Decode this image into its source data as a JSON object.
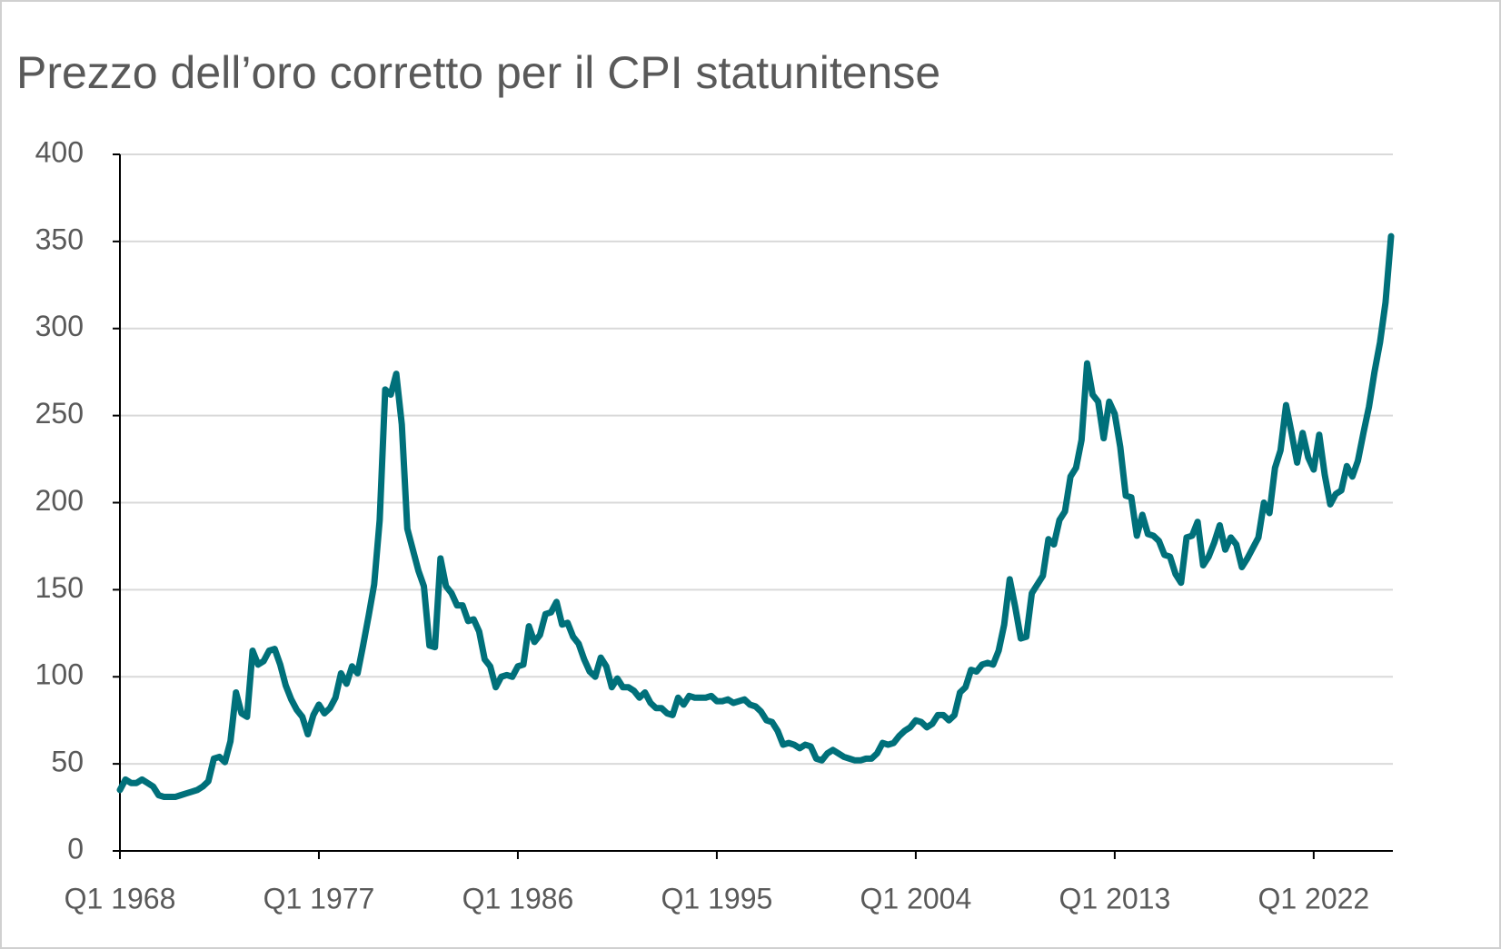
{
  "chart_data": {
    "type": "line",
    "title": "Prezzo dell’oro corretto per il CPI statunitense",
    "categories": [
      "Q1 1968",
      null,
      null,
      null,
      null,
      null,
      null,
      null,
      null,
      null,
      null,
      null,
      null,
      null,
      null,
      null,
      null,
      null,
      null,
      null,
      null,
      null,
      null,
      null,
      null,
      null,
      null,
      null,
      null,
      null,
      null,
      null,
      null,
      null,
      null,
      null,
      "Q1 1977",
      null,
      null,
      null,
      null,
      null,
      null,
      null,
      null,
      null,
      null,
      null,
      null,
      null,
      null,
      null,
      null,
      null,
      null,
      null,
      null,
      null,
      null,
      null,
      null,
      null,
      null,
      null,
      null,
      null,
      null,
      null,
      null,
      null,
      null,
      null,
      "Q1 1986",
      null,
      null,
      null,
      null,
      null,
      null,
      null,
      null,
      null,
      null,
      null,
      null,
      null,
      null,
      null,
      null,
      null,
      null,
      null,
      null,
      null,
      null,
      null,
      null,
      null,
      null,
      null,
      null,
      null,
      null,
      null,
      null,
      null,
      null,
      null,
      "Q1 1995",
      null,
      null,
      null,
      null,
      null,
      null,
      null,
      null,
      null,
      null,
      null,
      null,
      null,
      null,
      null,
      null,
      null,
      null,
      null,
      null,
      null,
      null,
      null,
      null,
      null,
      null,
      null,
      null,
      null,
      null,
      null,
      null,
      null,
      null,
      null,
      "Q1 2004",
      null,
      null,
      null,
      null,
      null,
      null,
      null,
      null,
      null,
      null,
      null,
      null,
      null,
      null,
      null,
      null,
      null,
      null,
      null,
      null,
      null,
      null,
      null,
      null,
      null,
      null,
      null,
      null,
      null,
      null,
      null,
      null,
      null,
      null,
      null,
      "Q1 2013",
      null,
      null,
      null,
      null,
      null,
      null,
      null,
      null,
      null,
      null,
      null,
      null,
      null,
      null,
      null,
      null,
      null,
      null,
      null,
      null,
      null,
      null,
      null,
      null,
      null,
      null,
      null,
      null,
      null,
      null,
      null,
      null,
      null,
      null,
      null,
      "Q1 2022",
      null,
      null,
      null,
      null,
      null,
      null,
      null,
      null,
      null,
      null,
      null,
      null,
      null,
      null
    ],
    "series": [
      {
        "color": "#00707a",
        "values": [
          35,
          41,
          39,
          39,
          41,
          39,
          37,
          32,
          31,
          31,
          31,
          32,
          33,
          34,
          35,
          37,
          40,
          53,
          54,
          51,
          63,
          91,
          79,
          77,
          115,
          107,
          109,
          115,
          116,
          107,
          95,
          87,
          81,
          77,
          67,
          78,
          84,
          79,
          82,
          88,
          102,
          96,
          106,
          102,
          118,
          135,
          153,
          190,
          265,
          262,
          274,
          245,
          185,
          173,
          161,
          152,
          118,
          117,
          168,
          152,
          148,
          141,
          141,
          132,
          133,
          126,
          110,
          106,
          94,
          100,
          101,
          100,
          106,
          107,
          129,
          120,
          124,
          136,
          137,
          143,
          130,
          131,
          123,
          119,
          110,
          103,
          100,
          111,
          106,
          94,
          99,
          94,
          94,
          92,
          88,
          91,
          85,
          82,
          82,
          79,
          78,
          88,
          84,
          89,
          88,
          88,
          88,
          89,
          86,
          86,
          87,
          85,
          86,
          87,
          84,
          83,
          80,
          75,
          74,
          69,
          61,
          62,
          61,
          59,
          61,
          60,
          53,
          52,
          56,
          58,
          56,
          54,
          53,
          52,
          52,
          53,
          53,
          56,
          62,
          61,
          62,
          66,
          69,
          71,
          75,
          74,
          71,
          73,
          78,
          78,
          75,
          78,
          91,
          94,
          104,
          103,
          107,
          108,
          107,
          115,
          130,
          156,
          140,
          122,
          123,
          148,
          153,
          158,
          179,
          176,
          190,
          195,
          215,
          220,
          236,
          280,
          262,
          258,
          237,
          258,
          251,
          232,
          204,
          203,
          181,
          193,
          182,
          181,
          178,
          170,
          169,
          159,
          154,
          180,
          181,
          189,
          164,
          169,
          177,
          187,
          173,
          180,
          176,
          163,
          168,
          174,
          180,
          200,
          194,
          220,
          230,
          256,
          240,
          223,
          240,
          226,
          219,
          239,
          216,
          199,
          205,
          207,
          221,
          215,
          224,
          240,
          255,
          275,
          292,
          315,
          353
        ]
      }
    ],
    "ylim": [
      0,
      400
    ],
    "yticks": [
      0,
      50,
      100,
      150,
      200,
      250,
      300,
      350,
      400
    ],
    "grid": true
  }
}
